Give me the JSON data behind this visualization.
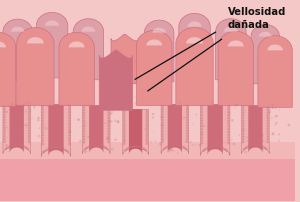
{
  "bg_color": "#f5c8c8",
  "villi_color_light": "#f0b0b0",
  "villi_color_mid": "#e89090",
  "villi_color_dark": "#c86070",
  "villi_color_top": "#f8d8d8",
  "base_color": "#f0a0a8",
  "crypt_color": "#c05060",
  "border_color": "#d07080",
  "dotted_color": "#c87880",
  "annotation_text": "Vellosidad\ndañada",
  "annotation_color": "#111111",
  "figsize": [
    3.0,
    2.03
  ],
  "dpi": 100
}
